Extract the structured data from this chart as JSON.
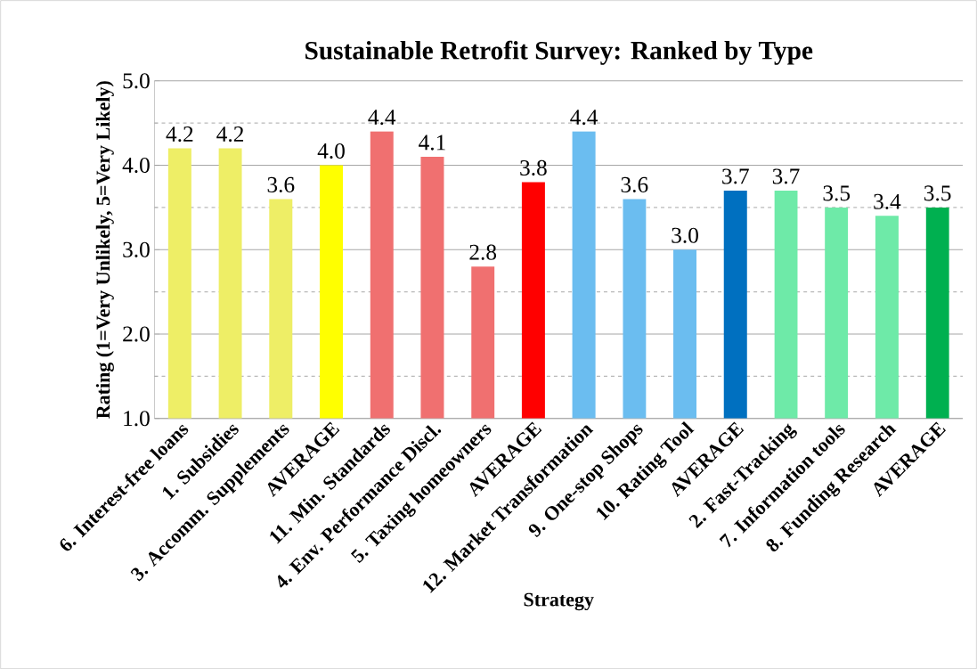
{
  "chart_data": {
    "type": "bar",
    "title": "Sustainable Retrofit Survey: Ranked by Type",
    "xlabel": "Strategy",
    "ylabel": "Rating (1=Very Unlikely, 5=Very Likely)",
    "categories": [
      "6. Interest-free loans",
      "1. Subsidies",
      "3. Accomm. Supplements",
      "AVERAGE",
      "11. Min. Standards",
      "4. Env. Performance Discl.",
      "5. Taxing homeowners",
      "AVERAGE",
      "12. Market Transformation",
      "9. One-stop Shops",
      "10. Rating Tool",
      "AVERAGE",
      "2. Fast-Tracking",
      "7. Information tools",
      "8. Funding Research",
      "AVERAGE"
    ],
    "values": [
      4.2,
      4.2,
      3.6,
      4.0,
      4.4,
      4.1,
      2.8,
      3.8,
      4.4,
      3.6,
      3.0,
      3.7,
      3.7,
      3.5,
      3.4,
      3.5
    ],
    "colors": [
      "#eeee66",
      "#eeee66",
      "#eeee66",
      "#ffff00",
      "#f07070",
      "#f07070",
      "#f07070",
      "#ff0000",
      "#6bbdf0",
      "#6bbdf0",
      "#6bbdf0",
      "#0070c0",
      "#6eeaa8",
      "#6eeaa8",
      "#6eeaa8",
      "#00b050"
    ],
    "ylim": [
      1.0,
      5.0
    ],
    "yticks": [
      {
        "value": 1.0,
        "label": "1.0"
      },
      {
        "value": 2.0,
        "label": "2.0"
      },
      {
        "value": 3.0,
        "label": "3.0"
      },
      {
        "value": 4.0,
        "label": "4.0"
      },
      {
        "value": 5.0,
        "label": "5.0"
      }
    ],
    "value_labels": [
      "4.2",
      "4.2",
      "3.6",
      "4.0",
      "4.4",
      "4.1",
      "2.8",
      "3.8",
      "4.4",
      "3.6",
      "3.0",
      "3.7",
      "3.7",
      "3.5",
      "3.4",
      "3.5"
    ],
    "grid": "y"
  }
}
